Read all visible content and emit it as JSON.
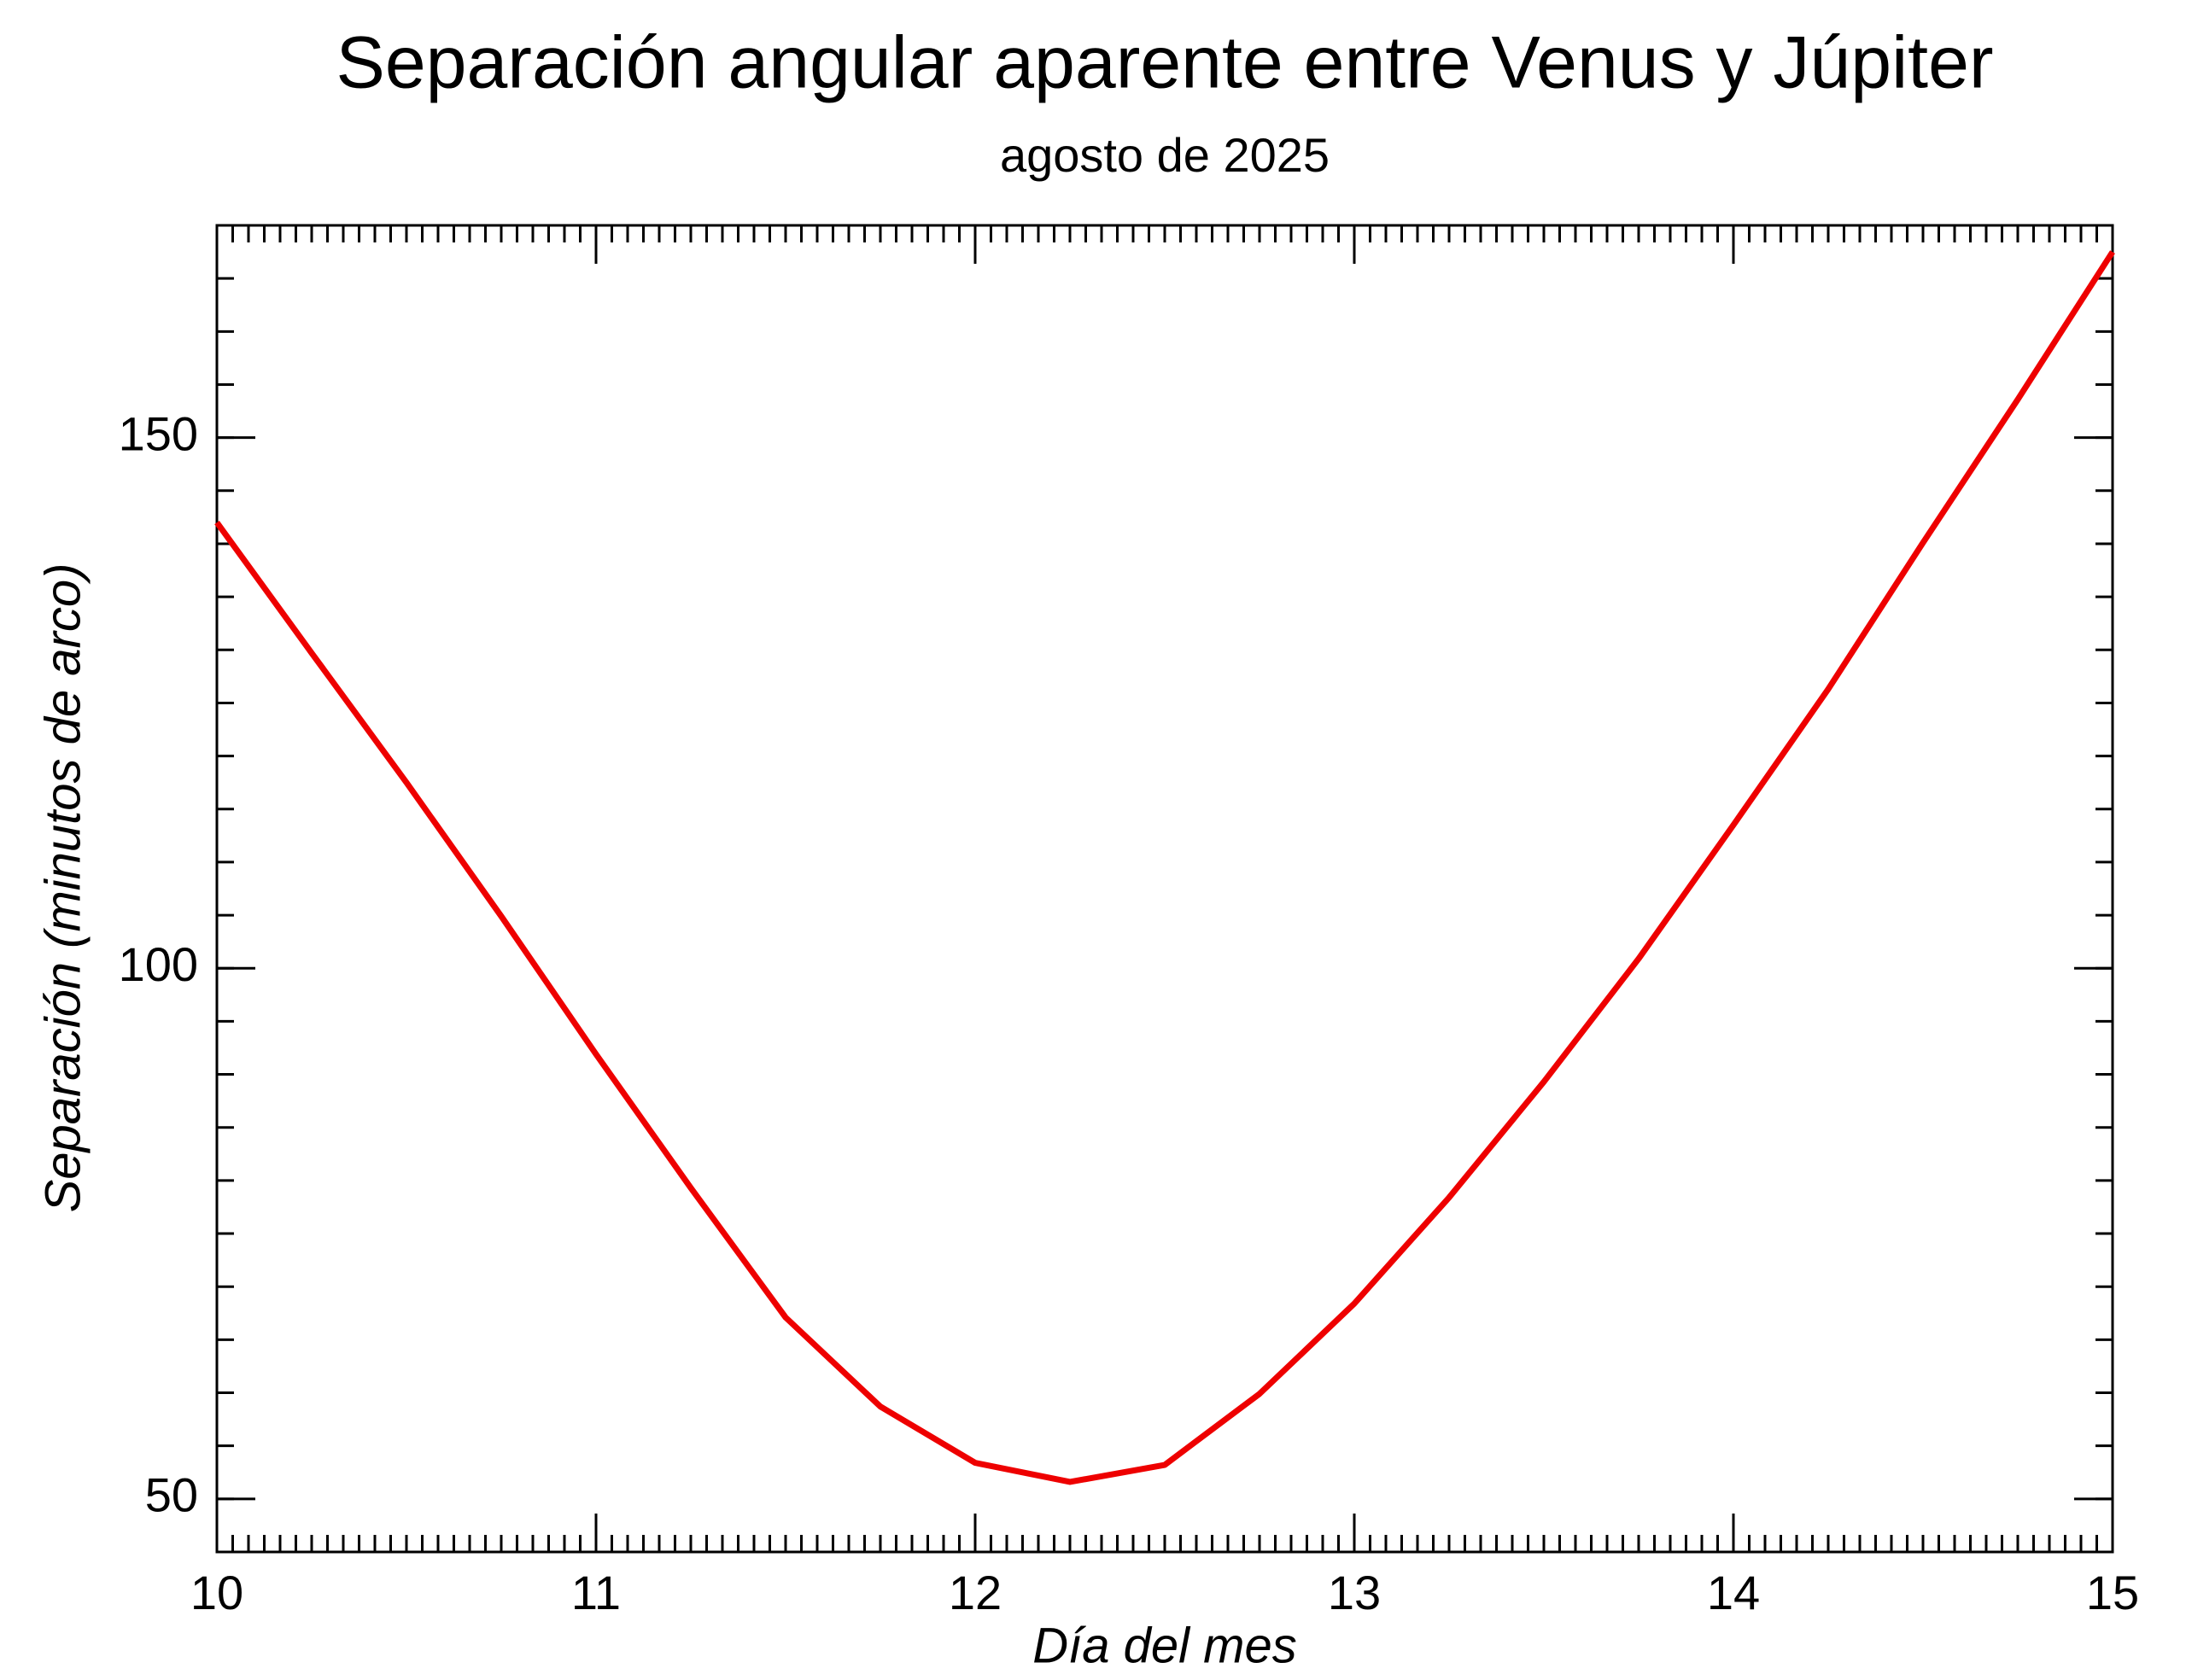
{
  "chart_data": {
    "type": "line",
    "title": "Separación angular aparente entre Venus y Júpiter",
    "subtitle": "agosto de 2025",
    "x_label": "Día del mes",
    "y_label": "Separación (minutos de arco)",
    "x": [
      10,
      10.25,
      10.5,
      10.75,
      11,
      11.25,
      11.5,
      11.75,
      12,
      12.25,
      12.5,
      12.75,
      13,
      13.25,
      13.5,
      13.75,
      14,
      14.25,
      14.5,
      14.75,
      15
    ],
    "series": [
      {
        "color": "#ee0000",
        "values": [
          142.0,
          129.7,
          117.5,
          104.9,
          91.9,
          79.3,
          67.1,
          58.7,
          53.4,
          51.6,
          53.2,
          59.9,
          68.4,
          78.4,
          89.3,
          100.9,
          113.5,
          126.3,
          140.1,
          153.6,
          167.5
        ]
      }
    ],
    "xlim": [
      10,
      15
    ],
    "xticks": [
      10,
      11,
      12,
      13,
      14,
      15
    ],
    "ylim": [
      45,
      170
    ],
    "yticks": [
      50,
      100,
      150
    ]
  }
}
